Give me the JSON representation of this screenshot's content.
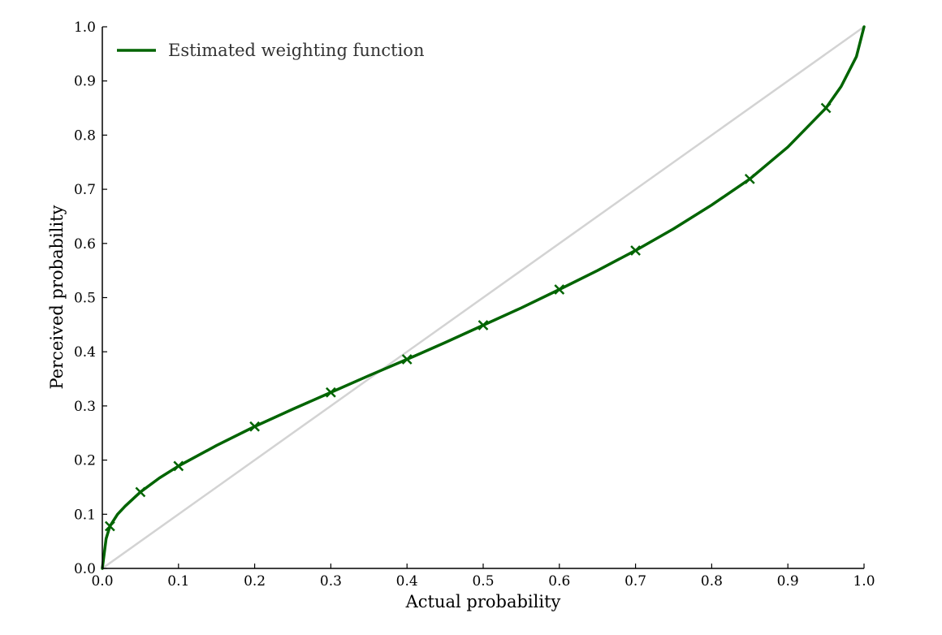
{
  "chart_data": {
    "type": "line",
    "xlabel": "Actual probability",
    "ylabel": "Perceived probability",
    "xlim": [
      0.0,
      1.0
    ],
    "ylim": [
      0.0,
      1.0
    ],
    "xticks": [
      "0.0",
      "0.1",
      "0.2",
      "0.3",
      "0.4",
      "0.5",
      "0.6",
      "0.7",
      "0.8",
      "0.9",
      "1.0"
    ],
    "yticks": [
      "0.0",
      "0.1",
      "0.2",
      "0.3",
      "0.4",
      "0.5",
      "0.6",
      "0.7",
      "0.8",
      "0.9",
      "1.0"
    ],
    "grid": false,
    "legend": {
      "placement": "upper-left"
    },
    "series": [
      {
        "name": "Estimated weighting function",
        "color": "#006400",
        "style": "solid",
        "x": [
          0.0,
          0.005,
          0.01,
          0.02,
          0.03,
          0.05,
          0.075,
          0.1,
          0.15,
          0.2,
          0.25,
          0.3,
          0.35,
          0.4,
          0.45,
          0.5,
          0.55,
          0.6,
          0.65,
          0.7,
          0.75,
          0.8,
          0.85,
          0.9,
          0.95,
          0.97,
          0.99,
          1.0
        ],
        "y": [
          0.0,
          0.055,
          0.078,
          0.1,
          0.115,
          0.141,
          0.167,
          0.189,
          0.227,
          0.262,
          0.294,
          0.325,
          0.356,
          0.386,
          0.417,
          0.449,
          0.481,
          0.515,
          0.55,
          0.587,
          0.627,
          0.671,
          0.719,
          0.778,
          0.85,
          0.89,
          0.945,
          1.0
        ]
      },
      {
        "name": "",
        "color": "#d3d3d3",
        "style": "solid",
        "x": [
          0.0,
          1.0
        ],
        "y": [
          0.0,
          1.0
        ]
      }
    ],
    "markers": {
      "symbol": "x",
      "color": "#006400",
      "x": [
        0.01,
        0.05,
        0.1,
        0.2,
        0.3,
        0.4,
        0.5,
        0.6,
        0.7,
        0.85,
        0.95
      ],
      "y": [
        0.078,
        0.141,
        0.189,
        0.262,
        0.325,
        0.386,
        0.449,
        0.515,
        0.587,
        0.719,
        0.85
      ]
    }
  }
}
